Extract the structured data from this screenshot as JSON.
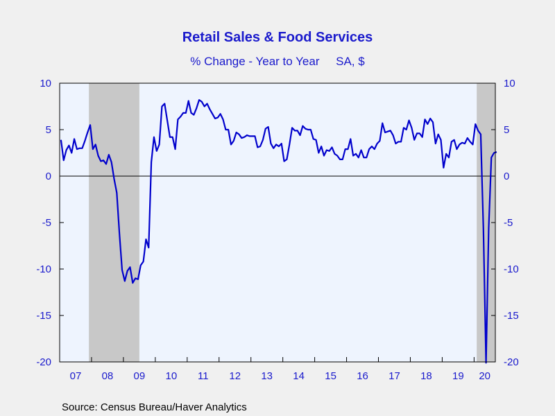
{
  "chart_data": {
    "type": "line",
    "title": "Retail Sales & Food Services",
    "subtitle": "% Change - Year to Year     SA, $",
    "source": "Source:  Census Bureau/Haver Analytics",
    "x_start": "2007-01",
    "x_end": "2020-08",
    "ylim": [
      -20,
      10
    ],
    "yticks": [
      "10",
      "5",
      "0",
      "-5",
      "-10",
      "-15",
      "-20"
    ],
    "ytick_values": [
      10,
      5,
      0,
      -5,
      -10,
      -15,
      -20
    ],
    "xticks": [
      "07",
      "08",
      "09",
      "10",
      "11",
      "12",
      "13",
      "14",
      "15",
      "16",
      "17",
      "18",
      "19",
      "20"
    ],
    "recessions": [
      [
        "2007-12",
        "2009-06"
      ],
      [
        "2020-02",
        "2020-08"
      ]
    ],
    "grid": false,
    "colors": {
      "line": "#0000cc",
      "plot_bg": "#eef4fe",
      "recession": "#c8c8c8",
      "text": "#1a1acc",
      "page_bg": "#f0f0f0"
    },
    "series": [
      {
        "values": [
          3.9,
          1.7,
          2.8,
          3.3,
          2.5,
          4.0,
          2.9,
          3.0,
          3.0,
          3.8,
          4.7,
          5.5,
          2.9,
          3.4,
          2.2,
          1.6,
          1.7,
          1.3,
          2.3,
          1.5,
          -0.3,
          -1.8,
          -6.2,
          -10.1,
          -11.3,
          -10.2,
          -9.8,
          -11.5,
          -11.0,
          -11.1,
          -9.6,
          -9.2,
          -6.8,
          -7.7,
          1.5,
          4.2,
          2.7,
          3.4,
          7.5,
          7.8,
          6.0,
          4.2,
          4.2,
          2.9,
          6.1,
          6.4,
          6.8,
          6.8,
          8.1,
          6.8,
          6.6,
          7.3,
          8.2,
          8.0,
          7.5,
          7.8,
          7.2,
          6.7,
          6.2,
          6.3,
          6.7,
          6.1,
          5.0,
          5.0,
          3.4,
          3.8,
          4.7,
          4.5,
          4.1,
          4.2,
          4.4,
          4.3,
          4.3,
          4.3,
          3.1,
          3.2,
          3.9,
          5.1,
          5.3,
          3.5,
          3.0,
          3.4,
          3.2,
          3.5,
          1.6,
          1.8,
          3.4,
          5.2,
          4.9,
          4.9,
          4.4,
          5.4,
          5.1,
          5.0,
          5.0,
          4.0,
          3.9,
          2.5,
          3.2,
          2.2,
          2.8,
          2.7,
          3.1,
          2.4,
          2.2,
          1.8,
          1.8,
          2.9,
          2.9,
          4.0,
          2.2,
          2.4,
          2.0,
          2.8,
          2.0,
          2.0,
          2.9,
          3.2,
          2.9,
          3.5,
          3.8,
          5.7,
          4.7,
          4.8,
          4.9,
          4.4,
          3.5,
          3.7,
          3.7,
          5.2,
          5.0,
          6.0,
          5.2,
          3.9,
          4.6,
          4.6,
          4.2,
          6.1,
          5.6,
          6.2,
          5.8,
          3.5,
          4.5,
          3.9,
          0.9,
          2.4,
          2.0,
          3.7,
          3.9,
          2.9,
          3.4,
          3.6,
          3.5,
          4.1,
          3.7,
          3.4,
          5.6,
          4.9,
          4.5,
          -5.6,
          -20.1,
          -5.6,
          2.0,
          2.5,
          2.6
        ]
      }
    ]
  }
}
